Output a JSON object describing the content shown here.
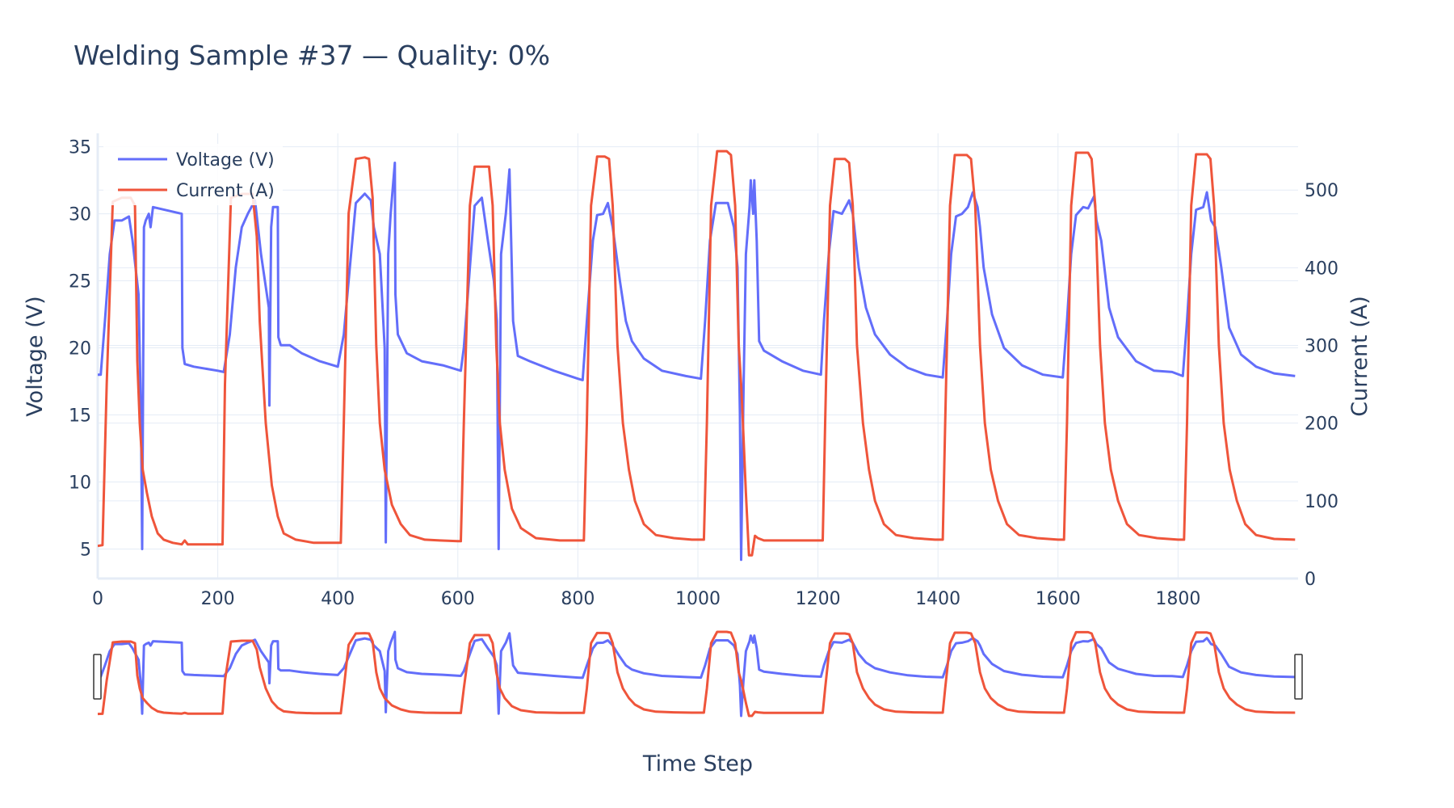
{
  "chart_data": {
    "type": "line",
    "title": "Welding Sample #37 — Quality: 0%",
    "xlabel": "Time Step",
    "ylabel": "Voltage (V)",
    "y2label": "Current (A)",
    "xlim": [
      0,
      2000
    ],
    "ylim": [
      2.8,
      36
    ],
    "y2lim": [
      0,
      573
    ],
    "xticks": [
      0,
      200,
      400,
      600,
      800,
      1000,
      1200,
      1400,
      1600,
      1800
    ],
    "yticks": [
      5,
      10,
      15,
      20,
      25,
      30,
      35
    ],
    "y2ticks": [
      0,
      100,
      200,
      300,
      400,
      500
    ],
    "grid": true,
    "legend_position": "top-left",
    "range_slider": true,
    "series": [
      {
        "name": "Voltage (V)",
        "axis": "left",
        "color": "#636efa",
        "points": [
          [
            0,
            18
          ],
          [
            5,
            18
          ],
          [
            12,
            22
          ],
          [
            20,
            27
          ],
          [
            28,
            29.5
          ],
          [
            40,
            29.5
          ],
          [
            52,
            29.8
          ],
          [
            58,
            28
          ],
          [
            68,
            24
          ],
          [
            72,
            15
          ],
          [
            74,
            5
          ],
          [
            77,
            29
          ],
          [
            80,
            29.5
          ],
          [
            85,
            30
          ],
          [
            88,
            29
          ],
          [
            92,
            30.5
          ],
          [
            140,
            30
          ],
          [
            141,
            20
          ],
          [
            145,
            18.8
          ],
          [
            160,
            18.6
          ],
          [
            200,
            18.3
          ],
          [
            210,
            18.2
          ],
          [
            220,
            21
          ],
          [
            230,
            26
          ],
          [
            240,
            29
          ],
          [
            250,
            30
          ],
          [
            262,
            31
          ],
          [
            272,
            27
          ],
          [
            285,
            23
          ],
          [
            286,
            15.7
          ],
          [
            289,
            29
          ],
          [
            292,
            30.5
          ],
          [
            300,
            30.5
          ],
          [
            301,
            20.8
          ],
          [
            305,
            20.2
          ],
          [
            320,
            20.2
          ],
          [
            340,
            19.6
          ],
          [
            370,
            19
          ],
          [
            400,
            18.6
          ],
          [
            410,
            21
          ],
          [
            420,
            26
          ],
          [
            430,
            30.8
          ],
          [
            445,
            31.5
          ],
          [
            455,
            31
          ],
          [
            460,
            29
          ],
          [
            470,
            27
          ],
          [
            478,
            20
          ],
          [
            480,
            5.5
          ],
          [
            484,
            27
          ],
          [
            488,
            30
          ],
          [
            495,
            33.8
          ],
          [
            496,
            24
          ],
          [
            500,
            21
          ],
          [
            515,
            19.6
          ],
          [
            540,
            19
          ],
          [
            575,
            18.7
          ],
          [
            605,
            18.3
          ],
          [
            610,
            20
          ],
          [
            620,
            26
          ],
          [
            628,
            30.6
          ],
          [
            640,
            31.2
          ],
          [
            650,
            28
          ],
          [
            660,
            25
          ],
          [
            665,
            22
          ],
          [
            668,
            5
          ],
          [
            672,
            27
          ],
          [
            680,
            30
          ],
          [
            686,
            33.3
          ],
          [
            692,
            22
          ],
          [
            700,
            19.4
          ],
          [
            720,
            19
          ],
          [
            760,
            18.3
          ],
          [
            800,
            17.7
          ],
          [
            808,
            17.6
          ],
          [
            815,
            22
          ],
          [
            825,
            28
          ],
          [
            832,
            29.9
          ],
          [
            842,
            30
          ],
          [
            850,
            30.8
          ],
          [
            858,
            29
          ],
          [
            870,
            25
          ],
          [
            880,
            22
          ],
          [
            890,
            20.5
          ],
          [
            910,
            19.2
          ],
          [
            940,
            18.3
          ],
          [
            980,
            17.9
          ],
          [
            1005,
            17.7
          ],
          [
            1012,
            22
          ],
          [
            1020,
            28
          ],
          [
            1030,
            30.8
          ],
          [
            1050,
            30.8
          ],
          [
            1060,
            29
          ],
          [
            1066,
            26
          ],
          [
            1070,
            15
          ],
          [
            1072,
            4.2
          ],
          [
            1076,
            17
          ],
          [
            1080,
            27
          ],
          [
            1086,
            30.5
          ],
          [
            1088,
            32.5
          ],
          [
            1092,
            30
          ],
          [
            1094,
            32.5
          ],
          [
            1098,
            28
          ],
          [
            1102,
            20.5
          ],
          [
            1110,
            19.8
          ],
          [
            1140,
            19
          ],
          [
            1175,
            18.3
          ],
          [
            1205,
            18
          ],
          [
            1210,
            22
          ],
          [
            1218,
            27
          ],
          [
            1226,
            30.2
          ],
          [
            1240,
            30
          ],
          [
            1252,
            31
          ],
          [
            1258,
            30
          ],
          [
            1268,
            26
          ],
          [
            1280,
            23
          ],
          [
            1295,
            21
          ],
          [
            1320,
            19.5
          ],
          [
            1350,
            18.5
          ],
          [
            1380,
            18
          ],
          [
            1408,
            17.8
          ],
          [
            1415,
            22
          ],
          [
            1422,
            27
          ],
          [
            1430,
            29.8
          ],
          [
            1440,
            30
          ],
          [
            1450,
            30.5
          ],
          [
            1458,
            31.6
          ],
          [
            1466,
            30.5
          ],
          [
            1470,
            29
          ],
          [
            1476,
            26
          ],
          [
            1490,
            22.5
          ],
          [
            1510,
            20
          ],
          [
            1540,
            18.7
          ],
          [
            1575,
            18
          ],
          [
            1608,
            17.8
          ],
          [
            1615,
            22
          ],
          [
            1622,
            27
          ],
          [
            1630,
            29.9
          ],
          [
            1642,
            30.5
          ],
          [
            1650,
            30.4
          ],
          [
            1660,
            31.3
          ],
          [
            1664,
            29.5
          ],
          [
            1672,
            28
          ],
          [
            1685,
            23
          ],
          [
            1700,
            20.8
          ],
          [
            1730,
            19
          ],
          [
            1760,
            18.3
          ],
          [
            1790,
            18.2
          ],
          [
            1808,
            17.9
          ],
          [
            1815,
            22
          ],
          [
            1822,
            27
          ],
          [
            1830,
            30.3
          ],
          [
            1842,
            30.5
          ],
          [
            1848,
            31.6
          ],
          [
            1855,
            29.5
          ],
          [
            1862,
            29
          ],
          [
            1872,
            26
          ],
          [
            1885,
            21.5
          ],
          [
            1905,
            19.5
          ],
          [
            1930,
            18.6
          ],
          [
            1960,
            18.1
          ],
          [
            1995,
            17.9
          ]
        ]
      },
      {
        "name": "Current (A)",
        "axis": "right",
        "color": "#ef553b",
        "points": [
          [
            0,
            42
          ],
          [
            8,
            43
          ],
          [
            15,
            250
          ],
          [
            25,
            485
          ],
          [
            40,
            490
          ],
          [
            55,
            490
          ],
          [
            62,
            480
          ],
          [
            66,
            280
          ],
          [
            70,
            200
          ],
          [
            75,
            140
          ],
          [
            82,
            110
          ],
          [
            90,
            80
          ],
          [
            100,
            58
          ],
          [
            110,
            50
          ],
          [
            125,
            46
          ],
          [
            140,
            44
          ],
          [
            145,
            49
          ],
          [
            150,
            44
          ],
          [
            190,
            44
          ],
          [
            208,
            44
          ],
          [
            212,
            250
          ],
          [
            222,
            490
          ],
          [
            240,
            495
          ],
          [
            258,
            495
          ],
          [
            265,
            440
          ],
          [
            270,
            330
          ],
          [
            280,
            200
          ],
          [
            290,
            120
          ],
          [
            300,
            80
          ],
          [
            310,
            58
          ],
          [
            330,
            50
          ],
          [
            360,
            46
          ],
          [
            405,
            46
          ],
          [
            410,
            200
          ],
          [
            418,
            470
          ],
          [
            430,
            540
          ],
          [
            445,
            542
          ],
          [
            452,
            540
          ],
          [
            458,
            490
          ],
          [
            464,
            300
          ],
          [
            470,
            200
          ],
          [
            478,
            140
          ],
          [
            490,
            95
          ],
          [
            505,
            70
          ],
          [
            520,
            56
          ],
          [
            545,
            50
          ],
          [
            570,
            49
          ],
          [
            600,
            48
          ],
          [
            605,
            48
          ],
          [
            610,
            200
          ],
          [
            620,
            480
          ],
          [
            628,
            530
          ],
          [
            640,
            530
          ],
          [
            652,
            530
          ],
          [
            658,
            480
          ],
          [
            664,
            300
          ],
          [
            670,
            200
          ],
          [
            678,
            140
          ],
          [
            690,
            90
          ],
          [
            705,
            65
          ],
          [
            730,
            52
          ],
          [
            770,
            49
          ],
          [
            800,
            49
          ],
          [
            810,
            49
          ],
          [
            815,
            200
          ],
          [
            822,
            480
          ],
          [
            832,
            543
          ],
          [
            845,
            543
          ],
          [
            852,
            540
          ],
          [
            858,
            480
          ],
          [
            866,
            300
          ],
          [
            875,
            200
          ],
          [
            885,
            140
          ],
          [
            895,
            100
          ],
          [
            910,
            70
          ],
          [
            930,
            56
          ],
          [
            960,
            52
          ],
          [
            990,
            50
          ],
          [
            1010,
            50
          ],
          [
            1015,
            200
          ],
          [
            1022,
            480
          ],
          [
            1032,
            550
          ],
          [
            1048,
            550
          ],
          [
            1055,
            545
          ],
          [
            1062,
            480
          ],
          [
            1068,
            300
          ],
          [
            1072,
            250
          ],
          [
            1075,
            200
          ],
          [
            1080,
            110
          ],
          [
            1085,
            30
          ],
          [
            1090,
            30
          ],
          [
            1095,
            55
          ],
          [
            1100,
            52
          ],
          [
            1110,
            49
          ],
          [
            1140,
            49
          ],
          [
            1180,
            49
          ],
          [
            1208,
            49
          ],
          [
            1212,
            200
          ],
          [
            1220,
            480
          ],
          [
            1228,
            540
          ],
          [
            1245,
            540
          ],
          [
            1252,
            535
          ],
          [
            1258,
            480
          ],
          [
            1265,
            300
          ],
          [
            1275,
            200
          ],
          [
            1285,
            140
          ],
          [
            1295,
            100
          ],
          [
            1310,
            70
          ],
          [
            1330,
            56
          ],
          [
            1360,
            52
          ],
          [
            1395,
            50
          ],
          [
            1408,
            50
          ],
          [
            1412,
            200
          ],
          [
            1420,
            480
          ],
          [
            1428,
            545
          ],
          [
            1448,
            545
          ],
          [
            1455,
            540
          ],
          [
            1462,
            480
          ],
          [
            1470,
            300
          ],
          [
            1478,
            200
          ],
          [
            1488,
            140
          ],
          [
            1500,
            100
          ],
          [
            1515,
            70
          ],
          [
            1535,
            56
          ],
          [
            1565,
            52
          ],
          [
            1600,
            50
          ],
          [
            1610,
            50
          ],
          [
            1615,
            200
          ],
          [
            1622,
            480
          ],
          [
            1630,
            548
          ],
          [
            1650,
            548
          ],
          [
            1656,
            540
          ],
          [
            1662,
            480
          ],
          [
            1670,
            300
          ],
          [
            1678,
            200
          ],
          [
            1688,
            140
          ],
          [
            1700,
            100
          ],
          [
            1715,
            70
          ],
          [
            1735,
            56
          ],
          [
            1765,
            52
          ],
          [
            1800,
            50
          ],
          [
            1810,
            50
          ],
          [
            1815,
            200
          ],
          [
            1822,
            480
          ],
          [
            1830,
            546
          ],
          [
            1848,
            546
          ],
          [
            1854,
            540
          ],
          [
            1860,
            480
          ],
          [
            1868,
            300
          ],
          [
            1876,
            200
          ],
          [
            1886,
            140
          ],
          [
            1898,
            100
          ],
          [
            1912,
            70
          ],
          [
            1930,
            56
          ],
          [
            1960,
            51
          ],
          [
            1995,
            50
          ]
        ]
      }
    ]
  }
}
